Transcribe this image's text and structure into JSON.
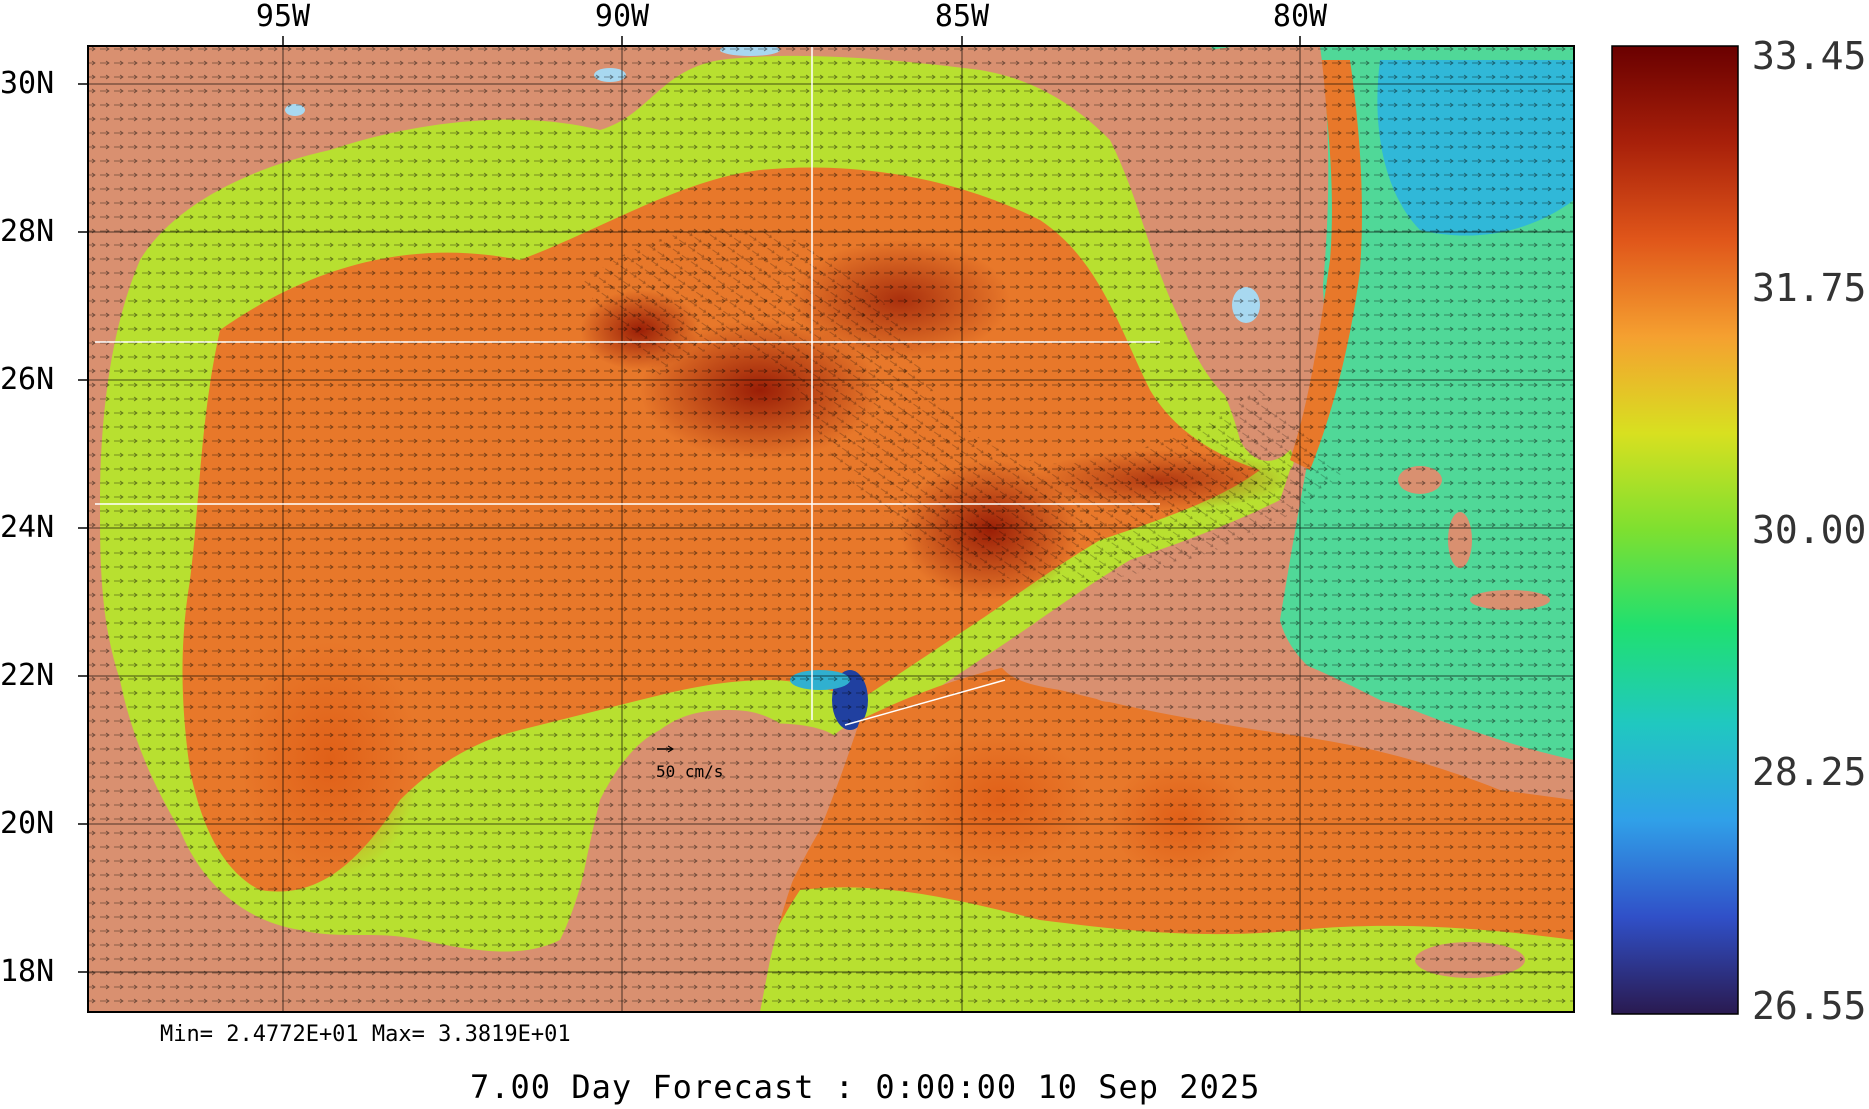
{
  "map": {
    "lon_labels": [
      "95W",
      "90W",
      "85W",
      "80W"
    ],
    "lat_labels": [
      "30N",
      "28N",
      "26N",
      "24N",
      "22N",
      "20N",
      "18N"
    ],
    "scale_label": "50 cm/s",
    "min_max": "Min= 2.4772E+01   Max= 3.3819E+01",
    "forecast": "7.00 Day Forecast :  0:00:00  10 Sep 2025"
  },
  "colorbar": {
    "labels": [
      "33.45",
      "31.75",
      "30.00",
      "28.25",
      "26.55"
    ],
    "stops": [
      "#6a0000",
      "#a8200a",
      "#e0561a",
      "#f5a030",
      "#d8e020",
      "#7ee030",
      "#20e070",
      "#20c8c0",
      "#30a0e8",
      "#3050c8",
      "#2a1a50"
    ]
  },
  "colors": {
    "land": "#d99070",
    "water_warm": "#e8782a",
    "water_hot": "#b8340c",
    "water_mid": "#b8e030",
    "water_cool": "#40d8a8",
    "lake": "#a8d8f0"
  }
}
